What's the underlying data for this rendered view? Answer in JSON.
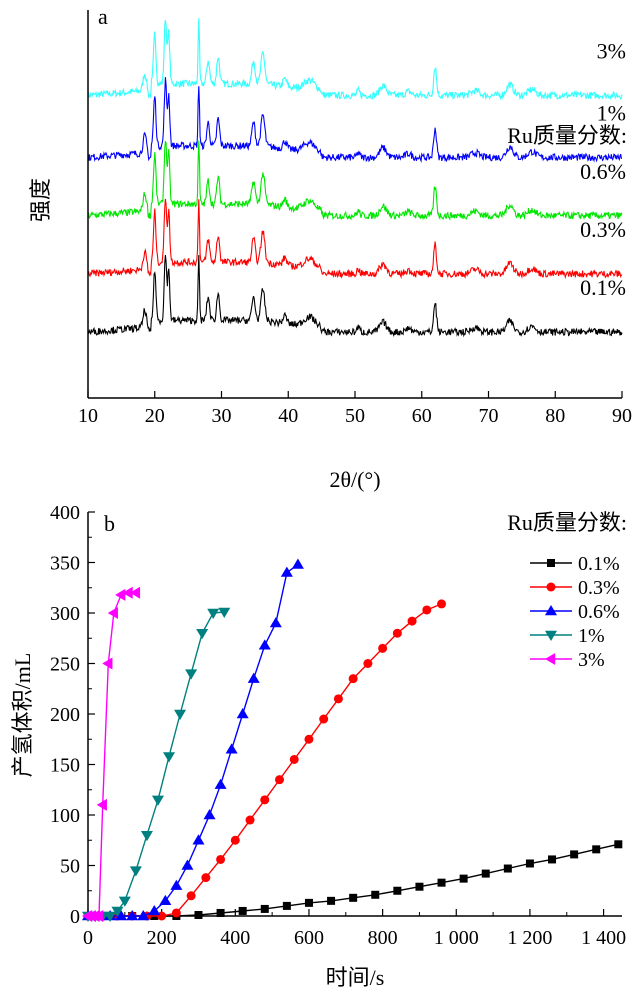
{
  "chart_data": [
    {
      "panel": "a",
      "type": "line",
      "xlabel": "2θ/(°)",
      "ylabel": "强度",
      "xlim": [
        10,
        90
      ],
      "xticks": [
        10,
        20,
        30,
        40,
        50,
        60,
        70,
        80,
        90
      ],
      "legend_title": "Ru质量分数:",
      "series": [
        {
          "name": "3%",
          "color": "#33ffff",
          "baseline": 0.78
        },
        {
          "name": "1%",
          "color": "#0000ff",
          "baseline": 0.62
        },
        {
          "name": "0.6%",
          "color": "#00e600",
          "baseline": 0.47
        },
        {
          "name": "0.3%",
          "color": "#ff0000",
          "baseline": 0.32
        },
        {
          "name": "0.1%",
          "color": "#000000",
          "baseline": 0.17
        }
      ],
      "peaks_2theta": [
        18.5,
        20.0,
        21.6,
        22.1,
        26.6,
        28.0,
        29.5,
        34.8,
        36.2,
        39.5,
        43.2,
        50.5,
        54.2,
        58.0,
        62.0,
        68.0,
        73.2,
        76.5
      ]
    },
    {
      "panel": "b",
      "type": "line",
      "xlabel": "时间/s",
      "ylabel": "产氢体积/mL",
      "xlim": [
        0,
        1450
      ],
      "ylim": [
        0,
        400
      ],
      "xticks": [
        0,
        200,
        400,
        600,
        800,
        1000,
        1200,
        1400
      ],
      "xtick_labels": [
        "0",
        "200",
        "400",
        "600",
        "800",
        "1 000",
        "1 200",
        "1 400"
      ],
      "yticks": [
        0,
        50,
        100,
        150,
        200,
        250,
        300,
        350,
        400
      ],
      "legend_title": "Ru质量分数:",
      "series": [
        {
          "name": "0.1%",
          "color": "#000000",
          "marker": "square",
          "x": [
            0,
            60,
            120,
            180,
            240,
            300,
            360,
            420,
            480,
            540,
            600,
            660,
            720,
            780,
            840,
            900,
            960,
            1020,
            1080,
            1140,
            1200,
            1260,
            1320,
            1380,
            1440
          ],
          "y": [
            0,
            0,
            0,
            0,
            0,
            1,
            3,
            5,
            7,
            10,
            13,
            15,
            18,
            21,
            25,
            29,
            33,
            37,
            42,
            47,
            52,
            56,
            61,
            66,
            71
          ]
        },
        {
          "name": "0.3%",
          "color": "#ff0000",
          "marker": "circle",
          "x": [
            0,
            40,
            80,
            120,
            160,
            200,
            240,
            280,
            320,
            360,
            400,
            440,
            480,
            520,
            560,
            600,
            640,
            680,
            720,
            760,
            800,
            840,
            880,
            920,
            960
          ],
          "y": [
            0,
            0,
            0,
            0,
            0,
            0,
            3,
            20,
            38,
            56,
            75,
            95,
            115,
            135,
            155,
            175,
            195,
            215,
            235,
            250,
            265,
            280,
            292,
            303,
            309
          ]
        },
        {
          "name": "0.6%",
          "color": "#0000ff",
          "marker": "triangle-up",
          "x": [
            0,
            30,
            60,
            90,
            120,
            150,
            180,
            210,
            240,
            270,
            300,
            330,
            360,
            390,
            420,
            450,
            480,
            510,
            540,
            570
          ],
          "y": [
            0,
            0,
            0,
            0,
            0,
            0,
            5,
            15,
            30,
            50,
            75,
            100,
            130,
            165,
            200,
            235,
            268,
            290,
            340,
            348
          ]
        },
        {
          "name": "1%",
          "color": "#008080",
          "marker": "triangle-down",
          "x": [
            0,
            20,
            40,
            60,
            80,
            100,
            130,
            160,
            190,
            220,
            250,
            280,
            310,
            340,
            370
          ],
          "y": [
            0,
            0,
            0,
            0,
            5,
            15,
            45,
            80,
            115,
            158,
            200,
            240,
            280,
            300,
            301
          ]
        },
        {
          "name": "3%",
          "color": "#ff00ff",
          "marker": "triangle-left",
          "x": [
            0,
            10,
            20,
            30,
            40,
            55,
            70,
            90,
            110,
            130
          ],
          "y": [
            0,
            0,
            0,
            0,
            110,
            250,
            300,
            318,
            320,
            320
          ]
        }
      ]
    }
  ],
  "panel_labels": {
    "a": "a",
    "b": "b"
  }
}
